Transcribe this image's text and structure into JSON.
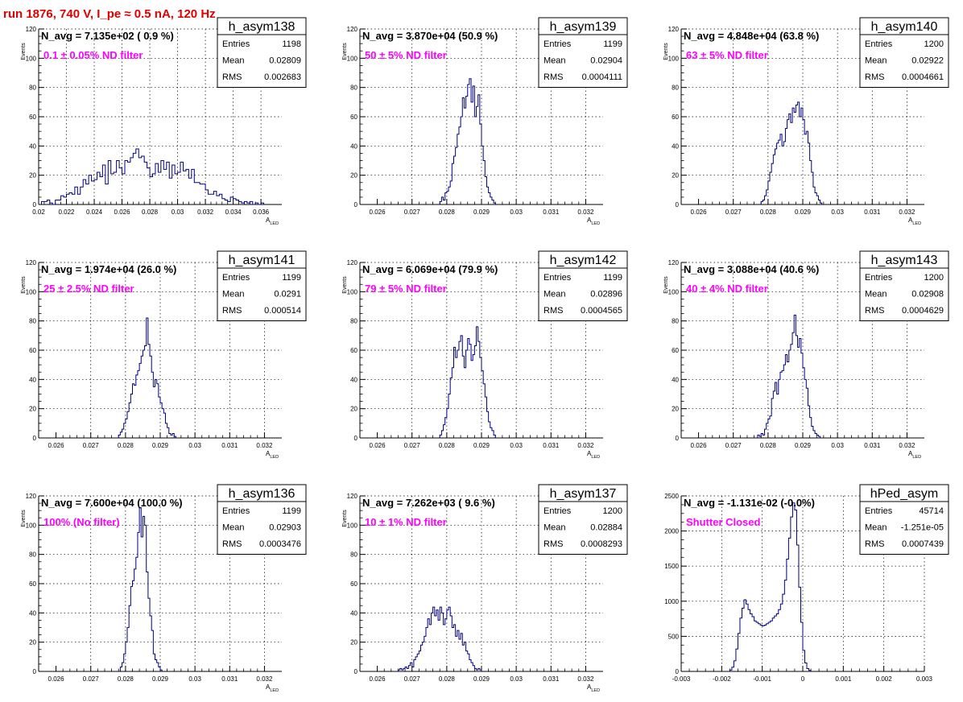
{
  "page_title": "run 1876,   740 V, I_pe ≈ 0.5 nA, 120 Hz",
  "colors": {
    "histogram": "#000080",
    "title": "#e00000",
    "note": "#ff00ff",
    "grid": "#000000"
  },
  "stats_labels": [
    "Entries",
    "Mean",
    "RMS"
  ],
  "chart_data": [
    {
      "type": "bar",
      "name": "h_asym138",
      "info_line": "N_avg = 7.135e+02 ( 0.9 %)",
      "note": "0.1 ± 0.05% ND filter",
      "stats": {
        "Entries": "1198",
        "Mean": "0.02809",
        "RMS": "0.002683"
      },
      "xlabel": "A_LED",
      "ylabel": "Events",
      "xlim": [
        0.02,
        0.0375
      ],
      "ylim": [
        0,
        120
      ],
      "xticks": [
        0.02,
        0.022,
        0.024,
        0.026,
        0.028,
        0.03,
        0.032,
        0.034,
        0.036
      ],
      "xticklabels": [
        "0.02",
        "0.022",
        "0.024",
        "0.026",
        "0.028",
        "0.03",
        "0.032",
        "0.034",
        "0.036"
      ],
      "yticks": [
        0,
        20,
        40,
        60,
        80,
        100,
        120
      ],
      "grid": true,
      "bin_start": 0.0202,
      "bin_width": 0.0002,
      "values": [
        2,
        2,
        3,
        1,
        0,
        3,
        3,
        6,
        5,
        7,
        8,
        7,
        12,
        7,
        12,
        17,
        14,
        20,
        16,
        17,
        22,
        19,
        27,
        14,
        30,
        21,
        22,
        30,
        25,
        21,
        30,
        29,
        32,
        35,
        38,
        32,
        33,
        29,
        25,
        19,
        21,
        28,
        22,
        30,
        24,
        29,
        18,
        27,
        21,
        22,
        29,
        23,
        24,
        18,
        24,
        15,
        15,
        14,
        14,
        10,
        7,
        7,
        9,
        6,
        7,
        4,
        3,
        2,
        5,
        4,
        3,
        2,
        1,
        2,
        1,
        2,
        0,
        1,
        0,
        1
      ]
    },
    {
      "type": "bar",
      "name": "h_asym139",
      "info_line": "N_avg = 3.870e+04 (50.9 %)",
      "note": "50 ± 5% ND filter",
      "stats": {
        "Entries": "1199",
        "Mean": "0.02904",
        "RMS": "0.0004111"
      },
      "xlabel": "A_LED",
      "ylabel": "Events",
      "xlim": [
        0.0255,
        0.0325
      ],
      "ylim": [
        0,
        120
      ],
      "xticks": [
        0.026,
        0.027,
        0.028,
        0.029,
        0.03,
        0.031,
        0.032
      ],
      "xticklabels": [
        "0.026",
        "0.027",
        "0.028",
        "0.029",
        "0.03",
        "0.031",
        "0.032"
      ],
      "yticks": [
        0,
        20,
        40,
        60,
        80,
        100,
        120
      ],
      "grid": true,
      "bin_start": 0.0278,
      "bin_width": 5e-05,
      "values": [
        2,
        5,
        3,
        8,
        9,
        12,
        16,
        28,
        33,
        39,
        48,
        53,
        60,
        73,
        66,
        74,
        82,
        86,
        70,
        81,
        60,
        67,
        75,
        55,
        40,
        30,
        19,
        12,
        8,
        5,
        3,
        1
      ]
    },
    {
      "type": "bar",
      "name": "h_asym140",
      "info_line": "N_avg = 4.848e+04 (63.8 %)",
      "note": "63 ± 5% ND filter",
      "stats": {
        "Entries": "1200",
        "Mean": "0.02922",
        "RMS": "0.0004661"
      },
      "xlabel": "A_LED",
      "ylabel": "Events",
      "xlim": [
        0.0255,
        0.0325
      ],
      "ylim": [
        0,
        120
      ],
      "xticks": [
        0.026,
        0.027,
        0.028,
        0.029,
        0.03,
        0.031,
        0.032
      ],
      "xticklabels": [
        "0.026",
        "0.027",
        "0.028",
        "0.029",
        "0.03",
        "0.031",
        "0.032"
      ],
      "yticks": [
        0,
        20,
        40,
        60,
        80,
        100,
        120
      ],
      "grid": true,
      "bin_start": 0.0278,
      "bin_width": 5e-05,
      "values": [
        2,
        3,
        6,
        10,
        16,
        22,
        28,
        34,
        38,
        42,
        44,
        48,
        40,
        43,
        52,
        58,
        62,
        56,
        66,
        63,
        68,
        70,
        60,
        66,
        58,
        48,
        50,
        42,
        30,
        22,
        12,
        8,
        6,
        3,
        1
      ]
    },
    {
      "type": "bar",
      "name": "h_asym141",
      "info_line": "N_avg = 1.974e+04 (26.0 %)",
      "note": "25 ± 2.5% ND filter",
      "stats": {
        "Entries": "1199",
        "Mean": "0.0291",
        "RMS": "0.000514"
      },
      "xlabel": "A_LED",
      "ylabel": "Events",
      "xlim": [
        0.0255,
        0.0325
      ],
      "ylim": [
        0,
        120
      ],
      "xticks": [
        0.026,
        0.027,
        0.028,
        0.029,
        0.03,
        0.031,
        0.032
      ],
      "xticklabels": [
        "0.026",
        "0.027",
        "0.028",
        "0.029",
        "0.03",
        "0.031",
        "0.032"
      ],
      "yticks": [
        0,
        20,
        40,
        60,
        80,
        100,
        120
      ],
      "grid": true,
      "bin_start": 0.0278,
      "bin_width": 5e-05,
      "values": [
        2,
        4,
        6,
        10,
        13,
        18,
        24,
        30,
        37,
        36,
        43,
        46,
        51,
        56,
        60,
        63,
        82,
        64,
        56,
        45,
        35,
        40,
        37,
        28,
        24,
        20,
        17,
        10,
        7,
        3,
        2,
        3,
        1
      ]
    },
    {
      "type": "bar",
      "name": "h_asym142",
      "info_line": "N_avg = 6.069e+04 (79.9 %)",
      "note": "79 ± 5% ND filter",
      "stats": {
        "Entries": "1199",
        "Mean": "0.02896",
        "RMS": "0.0004565"
      },
      "xlabel": "A_LED",
      "ylabel": "Events",
      "xlim": [
        0.0255,
        0.0325
      ],
      "ylim": [
        0,
        120
      ],
      "xticks": [
        0.026,
        0.027,
        0.028,
        0.029,
        0.03,
        0.031,
        0.032
      ],
      "xticklabels": [
        "0.026",
        "0.027",
        "0.028",
        "0.029",
        "0.03",
        "0.031",
        "0.032"
      ],
      "yticks": [
        0,
        20,
        40,
        60,
        80,
        100,
        120
      ],
      "grid": true,
      "bin_start": 0.0278,
      "bin_width": 5e-05,
      "values": [
        2,
        5,
        9,
        14,
        20,
        30,
        41,
        48,
        62,
        55,
        60,
        66,
        70,
        56,
        48,
        60,
        68,
        64,
        53,
        57,
        63,
        76,
        66,
        55,
        46,
        37,
        28,
        18,
        11,
        7,
        5,
        2
      ]
    },
    {
      "type": "bar",
      "name": "h_asym143",
      "info_line": "N_avg = 3.088e+04 (40.6 %)",
      "note": "40 ± 4% ND filter",
      "stats": {
        "Entries": "1200",
        "Mean": "0.02908",
        "RMS": "0.0004629"
      },
      "xlabel": "A_LED",
      "ylabel": "Events",
      "xlim": [
        0.0255,
        0.0325
      ],
      "ylim": [
        0,
        120
      ],
      "xticks": [
        0.026,
        0.027,
        0.028,
        0.029,
        0.03,
        0.031,
        0.032
      ],
      "xticklabels": [
        "0.026",
        "0.027",
        "0.028",
        "0.029",
        "0.03",
        "0.031",
        "0.032"
      ],
      "yticks": [
        0,
        20,
        40,
        60,
        80,
        100,
        120
      ],
      "grid": true,
      "bin_start": 0.0277,
      "bin_width": 5e-05,
      "values": [
        2,
        1,
        3,
        2,
        6,
        10,
        13,
        15,
        27,
        32,
        38,
        30,
        40,
        45,
        46,
        50,
        57,
        52,
        60,
        64,
        72,
        84,
        70,
        62,
        68,
        58,
        48,
        40,
        34,
        22,
        14,
        8,
        5,
        3,
        2,
        1
      ]
    },
    {
      "type": "bar",
      "name": "h_asym136",
      "info_line": "N_avg = 7.600e+04 (100.0 %)",
      "note": "100% (No filter)",
      "stats": {
        "Entries": "1199",
        "Mean": "0.02903",
        "RMS": "0.0003476"
      },
      "xlabel": "A_LED",
      "ylabel": "Events",
      "xlim": [
        0.0255,
        0.0325
      ],
      "ylim": [
        0,
        120
      ],
      "xticks": [
        0.026,
        0.027,
        0.028,
        0.029,
        0.03,
        0.031,
        0.032
      ],
      "xticklabels": [
        "0.026",
        "0.027",
        "0.028",
        "0.029",
        "0.03",
        "0.031",
        "0.032"
      ],
      "yticks": [
        0,
        20,
        40,
        60,
        80,
        100,
        120
      ],
      "grid": true,
      "bin_start": 0.02785,
      "bin_width": 5e-05,
      "values": [
        3,
        6,
        12,
        20,
        30,
        45,
        58,
        62,
        70,
        78,
        95,
        112,
        92,
        106,
        100,
        68,
        50,
        38,
        28,
        12,
        8,
        6,
        3,
        1
      ]
    },
    {
      "type": "bar",
      "name": "h_asym137",
      "info_line": "N_avg = 7.262e+03 ( 9.6 %)",
      "note": "10 ± 1% ND filter",
      "stats": {
        "Entries": "1200",
        "Mean": "0.02884",
        "RMS": "0.0008293"
      },
      "xlabel": "A_LED",
      "ylabel": "Events",
      "xlim": [
        0.0255,
        0.0325
      ],
      "ylim": [
        0,
        120
      ],
      "xticks": [
        0.026,
        0.027,
        0.028,
        0.029,
        0.03,
        0.031,
        0.032
      ],
      "xticklabels": [
        "0.026",
        "0.027",
        "0.028",
        "0.029",
        "0.03",
        "0.031",
        "0.032"
      ],
      "yticks": [
        0,
        20,
        40,
        60,
        80,
        100,
        120
      ],
      "grid": true,
      "bin_start": 0.0266,
      "bin_width": 5e-05,
      "values": [
        1,
        2,
        1,
        2,
        3,
        2,
        4,
        6,
        3,
        8,
        10,
        12,
        14,
        18,
        20,
        24,
        30,
        36,
        32,
        40,
        44,
        38,
        42,
        35,
        44,
        40,
        32,
        36,
        42,
        44,
        38,
        30,
        32,
        24,
        28,
        22,
        26,
        18,
        20,
        14,
        12,
        8,
        6,
        4,
        2,
        1,
        2,
        1
      ]
    },
    {
      "type": "bar",
      "name": "hPed_asym",
      "info_line": "N_avg = -1.131e-02 (-0.0%)",
      "note": "Shutter Closed",
      "stats": {
        "Entries": "45714",
        "Mean": "-1.251e-05",
        "RMS": "0.0007439"
      },
      "xlabel": "",
      "ylabel": "",
      "xlim": [
        -0.003,
        0.003
      ],
      "ylim": [
        0,
        2500
      ],
      "xticks": [
        -0.003,
        -0.002,
        -0.001,
        0,
        0.001,
        0.002,
        0.003
      ],
      "xticklabels": [
        "-0.003",
        "-0.002",
        "-0.001",
        "0",
        "0.001",
        "0.002",
        "0.003"
      ],
      "yticks": [
        0,
        500,
        1000,
        1500,
        2000,
        2500
      ],
      "grid": true,
      "bin_start": -0.0018,
      "bin_width": 5e-05,
      "values": [
        20,
        60,
        150,
        320,
        540,
        760,
        900,
        1020,
        960,
        880,
        820,
        780,
        720,
        700,
        680,
        660,
        650,
        660,
        680,
        700,
        720,
        760,
        790,
        820,
        880,
        960,
        1100,
        1300,
        1600,
        1900,
        2200,
        2400,
        2300,
        1800,
        1200,
        700,
        300,
        120,
        40,
        15
      ]
    }
  ]
}
